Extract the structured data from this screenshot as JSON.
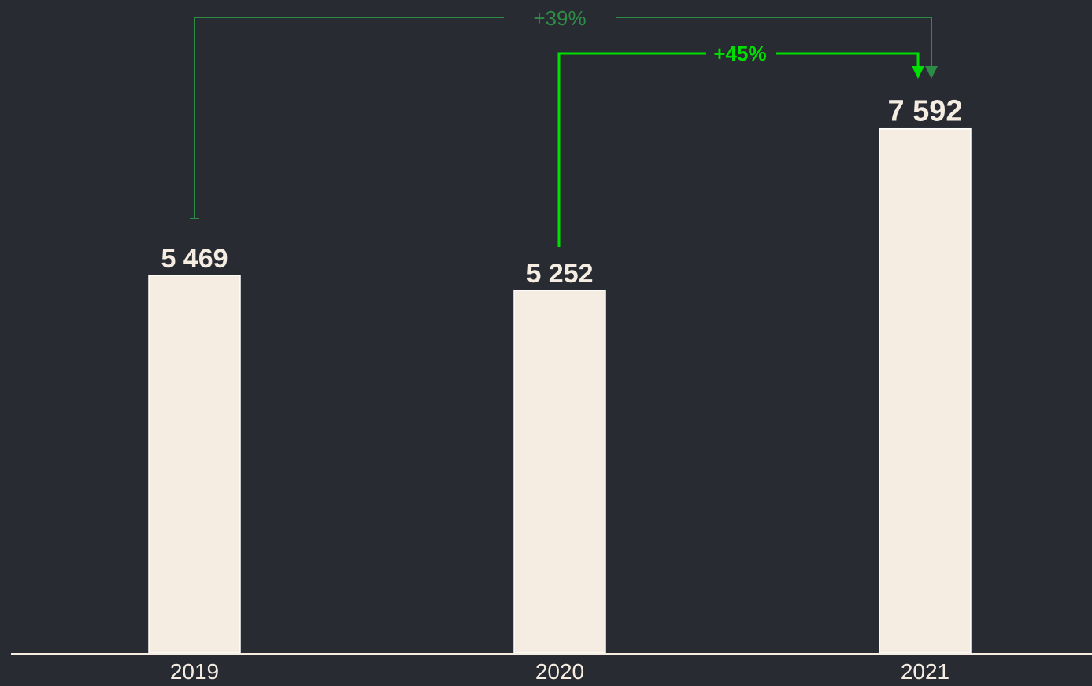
{
  "chart_data": {
    "type": "bar",
    "categories": [
      "2019",
      "2020",
      "2021"
    ],
    "values": [
      5469,
      5252,
      7592
    ],
    "value_labels": [
      "5 469",
      "5 252",
      "7 592"
    ],
    "title": "",
    "xlabel": "",
    "ylabel": "",
    "grid": false,
    "legend": "none",
    "annotations": [
      {
        "label": "+39%",
        "from": "2019",
        "to": "2021",
        "color": "#2e8b45"
      },
      {
        "label": "+45%",
        "from": "2020",
        "to": "2021",
        "color": "#00e000"
      }
    ],
    "colors": {
      "background": "#292b33",
      "bar": "#f5ede1",
      "text": "#f5ede1"
    }
  }
}
